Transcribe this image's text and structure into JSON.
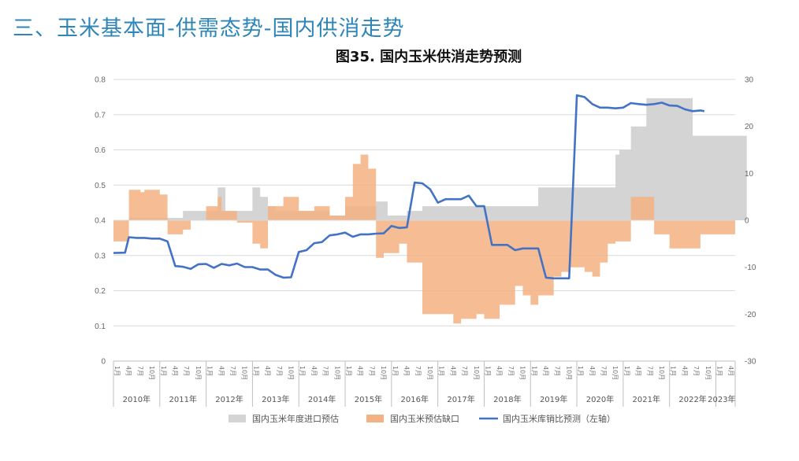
{
  "slide_title": "三、玉米基本面-供需态势-国内供消走势",
  "chart_data": {
    "type": "bar+line",
    "title": "图35. 国内玉米供消走势预测",
    "left_axis": {
      "min": 0,
      "max": 0.8,
      "ticks": [
        "0.8",
        "0.7",
        "0.6",
        "0.5",
        "0.4",
        "0.3",
        "0.2",
        "0.1",
        "0"
      ]
    },
    "right_axis": {
      "min": -30,
      "max": 30,
      "ticks": [
        "30",
        "20",
        "10",
        "0",
        "-10",
        "-20",
        "-30"
      ]
    },
    "grid": true,
    "legend_position": "bottom",
    "month_labels": [
      "1月",
      "4月",
      "7月",
      "10月"
    ],
    "years": [
      {
        "label": "2010年",
        "start": 0,
        "len": 12
      },
      {
        "label": "2011年",
        "start": 12,
        "len": 12
      },
      {
        "label": "2012年",
        "start": 24,
        "len": 12
      },
      {
        "label": "2013年",
        "start": 36,
        "len": 12
      },
      {
        "label": "2014年",
        "start": 48,
        "len": 12
      },
      {
        "label": "2015年",
        "start": 60,
        "len": 12
      },
      {
        "label": "2016年",
        "start": 72,
        "len": 12
      },
      {
        "label": "2017年",
        "start": 84,
        "len": 12
      },
      {
        "label": "2018年",
        "start": 96,
        "len": 12
      },
      {
        "label": "2019年",
        "start": 108,
        "len": 12
      },
      {
        "label": "2020年",
        "start": 120,
        "len": 12
      },
      {
        "label": "2021年",
        "start": 132,
        "len": 12
      },
      {
        "label": "2022年",
        "start": 144,
        "len": 12
      },
      {
        "label": "2023年",
        "start": 156,
        "len": 3
      }
    ],
    "series": [
      {
        "name": "国内玉米年度进口预估",
        "type": "step-area",
        "axis": "right",
        "color": "#d4d4d4",
        "values": [
          [
            0,
            0
          ],
          [
            4,
            0.5
          ],
          [
            12,
            0.5
          ],
          [
            18,
            2
          ],
          [
            24,
            2
          ],
          [
            27,
            7
          ],
          [
            29,
            2
          ],
          [
            36,
            7
          ],
          [
            38,
            5
          ],
          [
            40,
            3
          ],
          [
            42,
            2
          ],
          [
            46,
            2
          ],
          [
            48,
            2
          ],
          [
            52,
            2
          ],
          [
            56,
            1
          ],
          [
            60,
            3
          ],
          [
            64,
            3
          ],
          [
            66,
            3
          ],
          [
            68,
            4
          ],
          [
            71,
            1
          ],
          [
            76,
            2
          ],
          [
            80,
            3
          ],
          [
            84,
            3
          ],
          [
            92,
            3
          ],
          [
            96,
            3
          ],
          [
            98,
            3
          ],
          [
            104,
            3
          ],
          [
            110,
            7
          ],
          [
            118,
            7
          ],
          [
            126,
            7
          ],
          [
            130,
            14
          ],
          [
            131,
            15
          ],
          [
            134,
            20
          ],
          [
            138,
            26
          ],
          [
            140,
            26
          ],
          [
            150,
            18
          ],
          [
            161,
            18
          ]
        ]
      },
      {
        "name": "国内玉米预估缺口",
        "type": "step-area",
        "axis": "right",
        "color": "#f4b183",
        "values": [
          [
            0,
            -4.5
          ],
          [
            4,
            -4.5
          ],
          [
            4,
            6.5
          ],
          [
            7,
            6
          ],
          [
            8,
            6.5
          ],
          [
            12,
            5.5
          ],
          [
            14,
            -3
          ],
          [
            18,
            -2
          ],
          [
            20,
            0
          ],
          [
            24,
            3
          ],
          [
            27,
            5
          ],
          [
            28,
            2
          ],
          [
            32,
            -0.5
          ],
          [
            36,
            -5
          ],
          [
            38,
            -6
          ],
          [
            40,
            3
          ],
          [
            44,
            5
          ],
          [
            48,
            2
          ],
          [
            52,
            3
          ],
          [
            56,
            1
          ],
          [
            60,
            5
          ],
          [
            62,
            12
          ],
          [
            64,
            14
          ],
          [
            66,
            11
          ],
          [
            68,
            -8
          ],
          [
            70,
            -7
          ],
          [
            74,
            -5
          ],
          [
            76,
            -9
          ],
          [
            80,
            -20
          ],
          [
            88,
            -22
          ],
          [
            90,
            -21
          ],
          [
            94,
            -20
          ],
          [
            96,
            -21
          ],
          [
            100,
            -18
          ],
          [
            104,
            -14
          ],
          [
            106,
            -16
          ],
          [
            108,
            -18
          ],
          [
            110,
            -16
          ],
          [
            114,
            -12
          ],
          [
            116,
            -11
          ],
          [
            118,
            -10
          ],
          [
            120,
            -10
          ],
          [
            122,
            -11
          ],
          [
            124,
            -12
          ],
          [
            126,
            -9
          ],
          [
            128,
            -5
          ],
          [
            130,
            -4.5
          ],
          [
            134,
            5
          ],
          [
            138,
            5
          ],
          [
            140,
            -3
          ],
          [
            144,
            -6
          ],
          [
            150,
            -6
          ],
          [
            152,
            -3
          ],
          [
            158,
            -3
          ]
        ]
      },
      {
        "name": "国内玉米库销比预测（左轴）",
        "type": "line",
        "axis": "left",
        "color": "#4472c4",
        "points": [
          [
            0,
            0.307
          ],
          [
            3,
            0.308
          ],
          [
            4,
            0.352
          ],
          [
            6,
            0.35
          ],
          [
            8,
            0.35
          ],
          [
            10,
            0.348
          ],
          [
            12,
            0.348
          ],
          [
            14,
            0.34
          ],
          [
            16,
            0.27
          ],
          [
            18,
            0.268
          ],
          [
            20,
            0.262
          ],
          [
            22,
            0.275
          ],
          [
            24,
            0.276
          ],
          [
            26,
            0.265
          ],
          [
            28,
            0.276
          ],
          [
            30,
            0.272
          ],
          [
            32,
            0.277
          ],
          [
            34,
            0.267
          ],
          [
            36,
            0.267
          ],
          [
            38,
            0.26
          ],
          [
            40,
            0.26
          ],
          [
            42,
            0.245
          ],
          [
            44,
            0.237
          ],
          [
            46,
            0.238
          ],
          [
            48,
            0.31
          ],
          [
            50,
            0.315
          ],
          [
            52,
            0.335
          ],
          [
            54,
            0.338
          ],
          [
            56,
            0.357
          ],
          [
            58,
            0.36
          ],
          [
            60,
            0.365
          ],
          [
            62,
            0.353
          ],
          [
            64,
            0.36
          ],
          [
            66,
            0.36
          ],
          [
            68,
            0.362
          ],
          [
            70,
            0.363
          ],
          [
            72,
            0.384
          ],
          [
            74,
            0.378
          ],
          [
            76,
            0.38
          ],
          [
            78,
            0.507
          ],
          [
            80,
            0.505
          ],
          [
            82,
            0.488
          ],
          [
            84,
            0.45
          ],
          [
            86,
            0.46
          ],
          [
            88,
            0.46
          ],
          [
            90,
            0.46
          ],
          [
            92,
            0.47
          ],
          [
            94,
            0.44
          ],
          [
            96,
            0.44
          ],
          [
            98,
            0.33
          ],
          [
            100,
            0.33
          ],
          [
            102,
            0.33
          ],
          [
            104,
            0.315
          ],
          [
            106,
            0.32
          ],
          [
            108,
            0.32
          ],
          [
            110,
            0.32
          ],
          [
            112,
            0.237
          ],
          [
            114,
            0.235
          ],
          [
            116,
            0.235
          ],
          [
            118,
            0.235
          ],
          [
            120,
            0.755
          ],
          [
            122,
            0.75
          ],
          [
            124,
            0.73
          ],
          [
            126,
            0.72
          ],
          [
            128,
            0.72
          ],
          [
            130,
            0.718
          ],
          [
            132,
            0.72
          ],
          [
            134,
            0.733
          ],
          [
            136,
            0.73
          ],
          [
            138,
            0.728
          ],
          [
            140,
            0.73
          ],
          [
            142,
            0.734
          ],
          [
            144,
            0.726
          ],
          [
            146,
            0.725
          ],
          [
            148,
            0.715
          ],
          [
            150,
            0.71
          ],
          [
            152,
            0.712
          ],
          [
            153,
            0.71
          ]
        ]
      }
    ]
  }
}
